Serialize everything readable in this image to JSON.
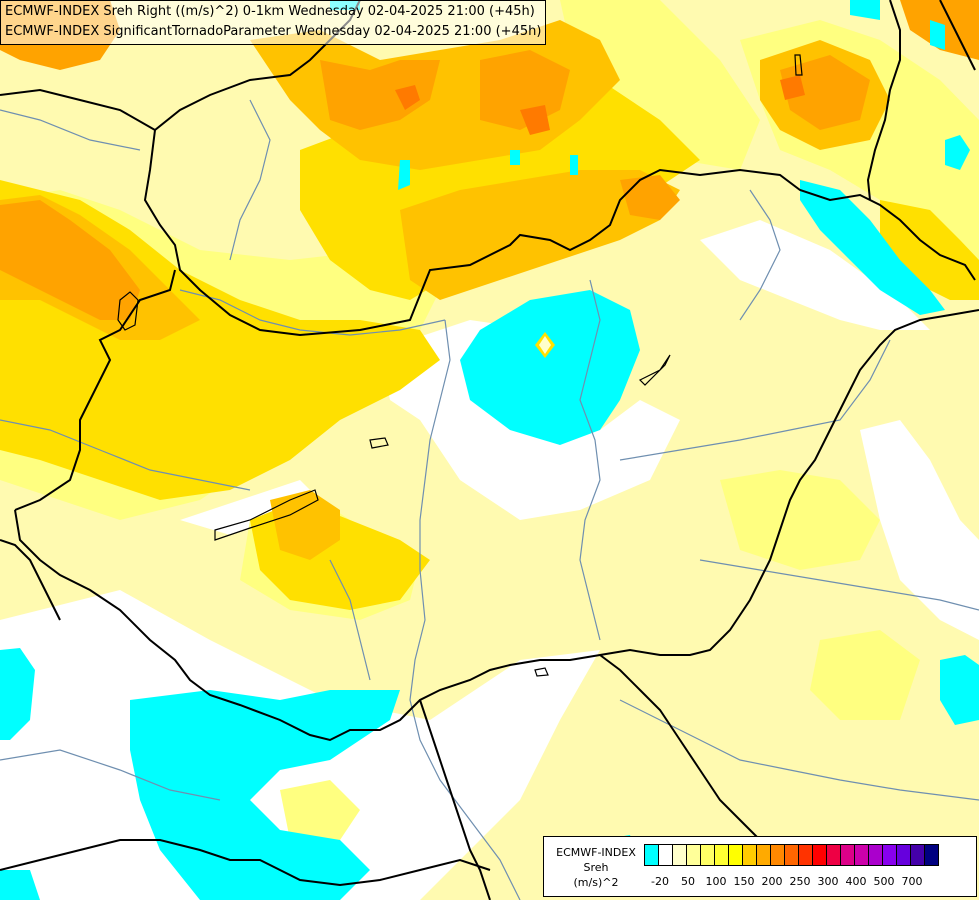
{
  "titles": {
    "line1": "ECMWF-INDEX Sreh Right ((m/s)^2) 0-1km Wednesday 02-04-2025 21:00 (+45h)",
    "line2": "ECMWF-INDEX SignificantTornadoParameter Wednesday 02-04-2025 21:00 (+45h)"
  },
  "legend": {
    "title_line1": "ECMWF-INDEX",
    "title_line2": "Sreh",
    "title_line3": "(m/s)^2",
    "colors": [
      "#00ffff",
      "#ffffff",
      "#ffffcc",
      "#ffff99",
      "#ffff66",
      "#ffff33",
      "#ffff00",
      "#ffcc00",
      "#ffaa00",
      "#ff8800",
      "#ff6600",
      "#ff3300",
      "#ff0000",
      "#ee0044",
      "#dd0088",
      "#cc00aa",
      "#aa00cc",
      "#8800ee",
      "#6600dd",
      "#4400aa",
      "#000080"
    ],
    "ticks": [
      "-20",
      "50",
      "100",
      "150",
      "200",
      "250",
      "300",
      "400",
      "500",
      "700"
    ]
  },
  "colors": {
    "cyan": "#00ffff",
    "pale": "#fffab0",
    "yellow_light": "#ffff80",
    "yellow": "#ffe000",
    "gold": "#ffc200",
    "orange": "#ffa300",
    "dark_orange": "#ff7a00",
    "border": "#000000",
    "river": "#6f8fb0"
  }
}
